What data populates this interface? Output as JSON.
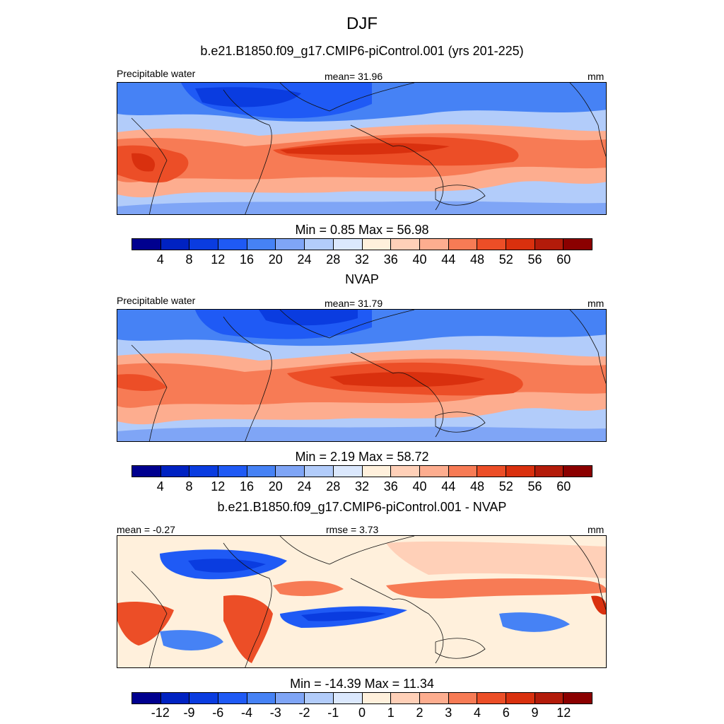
{
  "page": {
    "title": "DJF"
  },
  "palettes": {
    "abs": [
      "#00008f",
      "#0022c2",
      "#0a3ce0",
      "#1f5af5",
      "#4682f5",
      "#7fa5f6",
      "#b2ccfa",
      "#dbe8fd",
      "#fff0dc",
      "#ffd0b8",
      "#fdad8f",
      "#f77b55",
      "#ec4e27",
      "#d9300e",
      "#b31b0a",
      "#8b0000"
    ],
    "diff": [
      "#00008f",
      "#0022c2",
      "#0a3ce0",
      "#1f5af5",
      "#4682f5",
      "#7fa5f6",
      "#b2ccfa",
      "#dbe8fd",
      "#fff0dc",
      "#ffd0b8",
      "#fdad8f",
      "#f77b55",
      "#ec4e27",
      "#d9300e",
      "#b31b0a",
      "#8b0000"
    ]
  },
  "chart_data": [
    {
      "type": "heatmap",
      "title": "b.e21.B1850.f09_g17.CMIP6-piControl.001 (yrs 201-225)",
      "left_label": "Precipitable water",
      "center_label": "mean=  31.96",
      "right_label": "mm",
      "min_max_label": "Min =   0.85 Max =  56.98",
      "mean": 31.96,
      "min": 0.85,
      "max": 56.98,
      "colorbar_levels": [
        "4",
        "8",
        "12",
        "16",
        "20",
        "24",
        "28",
        "32",
        "36",
        "40",
        "44",
        "48",
        "52",
        "56",
        "60"
      ],
      "colorbar_palette": "abs",
      "lon_range": [
        0,
        360
      ],
      "lat_range": [
        -60,
        60
      ]
    },
    {
      "type": "heatmap",
      "title": "NVAP",
      "left_label": "Precipitable water",
      "center_label": "mean=  31.79",
      "right_label": "mm",
      "min_max_label": "Min =   2.19 Max =  58.72",
      "mean": 31.79,
      "min": 2.19,
      "max": 58.72,
      "colorbar_levels": [
        "4",
        "8",
        "12",
        "16",
        "20",
        "24",
        "28",
        "32",
        "36",
        "40",
        "44",
        "48",
        "52",
        "56",
        "60"
      ],
      "colorbar_palette": "abs",
      "lon_range": [
        0,
        360
      ],
      "lat_range": [
        -60,
        60
      ]
    },
    {
      "type": "heatmap",
      "title": "b.e21.B1850.f09_g17.CMIP6-piControl.001 - NVAP",
      "left_label": "mean =  -0.27",
      "center_label": "rmse =   3.73",
      "right_label": "mm",
      "min_max_label": "Min = -14.39 Max =  11.34",
      "mean": -0.27,
      "rmse": 3.73,
      "min": -14.39,
      "max": 11.34,
      "colorbar_levels": [
        "-12",
        "-9",
        "-6",
        "-4",
        "-3",
        "-2",
        "-1",
        "0",
        "1",
        "2",
        "3",
        "4",
        "6",
        "9",
        "12"
      ],
      "colorbar_palette": "diff",
      "lon_range": [
        0,
        360
      ],
      "lat_range": [
        -60,
        60
      ]
    }
  ]
}
